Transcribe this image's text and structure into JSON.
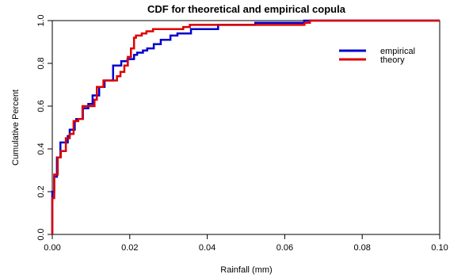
{
  "chart_data": {
    "type": "line",
    "step": true,
    "title": "CDF for theoretical and empirical copula",
    "xlabel": "Rainfall (mm)",
    "ylabel": "Cumulative Percent",
    "xlim": [
      0,
      0.1
    ],
    "ylim": [
      0,
      1.0
    ],
    "x_ticks": [
      "0.00",
      "0.02",
      "0.04",
      "0.06",
      "0.08",
      "0.10"
    ],
    "y_ticks": [
      "0.0",
      "0.2",
      "0.4",
      "0.6",
      "0.8",
      "1.0"
    ],
    "grid": false,
    "legend_position": "top-right",
    "series": [
      {
        "name": "empirical",
        "color": "#0000cc",
        "x": [
          0.0,
          0.0,
          0.0005,
          0.0012,
          0.0021,
          0.004,
          0.0045,
          0.0058,
          0.0062,
          0.0079,
          0.0093,
          0.0104,
          0.0121,
          0.0135,
          0.0157,
          0.0178,
          0.0194,
          0.0211,
          0.0219,
          0.0234,
          0.0245,
          0.0262,
          0.0267,
          0.028,
          0.0305,
          0.0323,
          0.0358,
          0.0386,
          0.0428,
          0.0524,
          0.0626,
          0.065,
          0.1
        ],
        "y": [
          0.0,
          0.2,
          0.27,
          0.36,
          0.43,
          0.46,
          0.49,
          0.53,
          0.54,
          0.59,
          0.61,
          0.65,
          0.69,
          0.72,
          0.79,
          0.81,
          0.82,
          0.84,
          0.85,
          0.86,
          0.87,
          0.89,
          0.89,
          0.91,
          0.93,
          0.94,
          0.96,
          0.96,
          0.98,
          0.99,
          0.99,
          1.0,
          1.0
        ]
      },
      {
        "name": "theory",
        "color": "#dd0000",
        "x": [
          0.0,
          0.0,
          0.0005,
          0.0014,
          0.0022,
          0.0029,
          0.0035,
          0.0045,
          0.0055,
          0.0067,
          0.0078,
          0.0095,
          0.0109,
          0.0115,
          0.0125,
          0.0132,
          0.0143,
          0.0156,
          0.0167,
          0.0176,
          0.0186,
          0.0195,
          0.0203,
          0.0211,
          0.0216,
          0.0223,
          0.0231,
          0.0243,
          0.026,
          0.0338,
          0.0355,
          0.0404,
          0.0557,
          0.0627,
          0.0651,
          0.0665,
          0.1
        ],
        "y": [
          0.0,
          0.17,
          0.28,
          0.36,
          0.39,
          0.39,
          0.45,
          0.47,
          0.53,
          0.54,
          0.6,
          0.6,
          0.63,
          0.69,
          0.69,
          0.72,
          0.72,
          0.72,
          0.74,
          0.76,
          0.79,
          0.83,
          0.87,
          0.92,
          0.93,
          0.93,
          0.94,
          0.95,
          0.96,
          0.97,
          0.98,
          0.98,
          0.98,
          0.98,
          0.99,
          1.0,
          1.0
        ]
      }
    ]
  }
}
